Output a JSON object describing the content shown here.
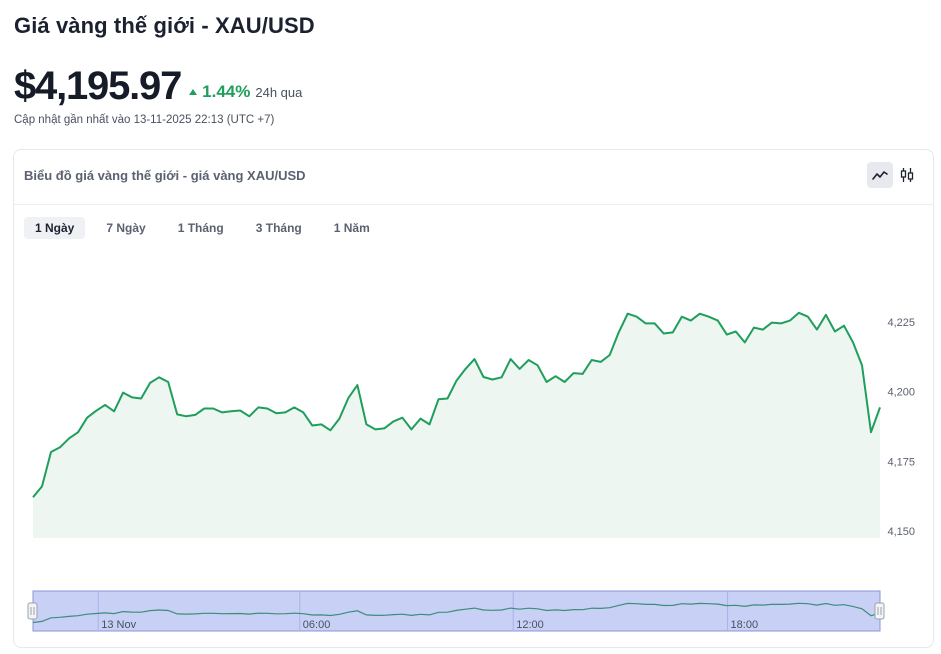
{
  "page": {
    "title": "Giá vàng thế giới - XAU/USD",
    "price": "$4,195.97",
    "change_pct": "1.44%",
    "change_period": "24h qua",
    "updated": "Cập nhật gần nhất vào 13-11-2025 22:13 (UTC +7)"
  },
  "card": {
    "title": "Biểu đồ giá vàng thế giới - giá vàng XAU/USD",
    "tabs": [
      {
        "label": "1 Ngày",
        "active": true
      },
      {
        "label": "7 Ngày",
        "active": false
      },
      {
        "label": "1 Tháng",
        "active": false
      },
      {
        "label": "3 Tháng",
        "active": false
      },
      {
        "label": "1 Năm",
        "active": false
      }
    ],
    "chart_modes": [
      {
        "icon": "line-chart-icon",
        "active": true
      },
      {
        "icon": "candlestick-icon",
        "active": false
      }
    ]
  },
  "colors": {
    "line": "#1f9e5c",
    "area": "#eef6f1",
    "up": "#1f9e5c",
    "navigator_fill": "#c8d0f5",
    "navigator_border": "#8a96d8"
  },
  "chart_data": {
    "type": "area",
    "ylim": [
      4150,
      4250
    ],
    "yticks": [
      4150,
      4175,
      4200,
      4225
    ],
    "ytick_labels": [
      "4,150",
      "4,175",
      "4,200",
      "4,225"
    ],
    "grid": false,
    "series": [
      {
        "values": [
          4162.1,
          4166.0,
          4178.3,
          4180.0,
          4183.2,
          4185.4,
          4190.6,
          4193.1,
          4195.2,
          4192.9,
          4199.6,
          4197.9,
          4197.5,
          4203.1,
          4205.1,
          4203.4,
          4191.8,
          4191.1,
          4191.6,
          4193.9,
          4193.9,
          4192.5,
          4192.9,
          4193.2,
          4191.1,
          4194.3,
          4193.9,
          4192.2,
          4192.5,
          4194.3,
          4192.5,
          4187.8,
          4188.2,
          4186.1,
          4190.3,
          4197.7,
          4202.3,
          4188.2,
          4186.4,
          4186.8,
          4189.3,
          4190.6,
          4186.4,
          4190.3,
          4188.2,
          4197.2,
          4197.5,
          4203.9,
          4208.1,
          4211.6,
          4205.2,
          4204.3,
          4205.1,
          4211.6,
          4208.1,
          4211.3,
          4209.4,
          4203.4,
          4205.5,
          4203.4,
          4206.6,
          4206.3,
          4211.3,
          4210.6,
          4213.1,
          4221.2,
          4227.9,
          4226.8,
          4224.4,
          4224.4,
          4220.8,
          4221.2,
          4226.8,
          4225.4,
          4227.9,
          4226.8,
          4225.4,
          4220.4,
          4221.5,
          4217.6,
          4222.9,
          4222.2,
          4224.7,
          4224.4,
          4225.4,
          4228.2,
          4226.8,
          4222.2,
          4227.5,
          4221.5,
          4223.6,
          4217.6,
          4209.4,
          4185.4,
          4194.3
        ]
      }
    ],
    "x_tick_labels": [
      "13 Nov",
      "06:00",
      "12:00",
      "18:00"
    ]
  }
}
